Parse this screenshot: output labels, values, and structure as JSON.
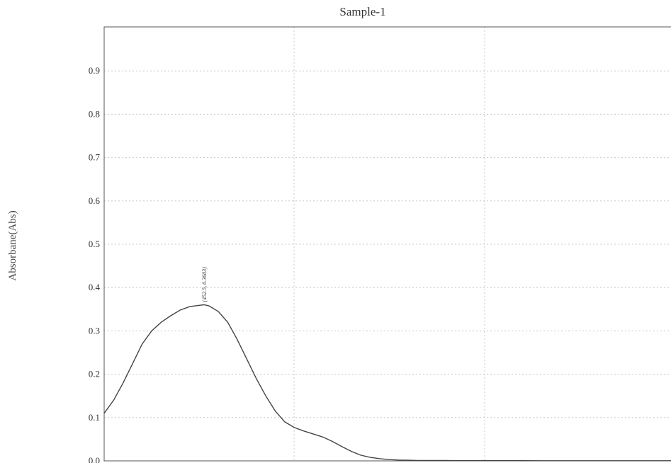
{
  "chart_data": {
    "type": "line",
    "title": "Sample-1",
    "xlabel": "",
    "ylabel": "Absorbane(Abs)",
    "ylim": [
      0.0,
      1.0
    ],
    "xlim": [
      400,
      700
    ],
    "yticks": [
      "0.0",
      "0.1",
      "0.2",
      "0.3",
      "0.4",
      "0.5",
      "0.6",
      "0.7",
      "0.8",
      "0.9"
    ],
    "grid": true,
    "series": [
      {
        "x": [
          400,
          405,
          410,
          415,
          420,
          425,
          430,
          435,
          440,
          445,
          450,
          452.5,
          455,
          460,
          465,
          470,
          475,
          480,
          485,
          490,
          495,
          500,
          505,
          510,
          515,
          520,
          525,
          530,
          535,
          540,
          545,
          550,
          555,
          560,
          565,
          570,
          575,
          580,
          585,
          590,
          600,
          610,
          620,
          630,
          640,
          650,
          660,
          670,
          680,
          690,
          700
        ],
        "y": [
          0.11,
          0.14,
          0.18,
          0.225,
          0.27,
          0.3,
          0.32,
          0.335,
          0.348,
          0.356,
          0.359,
          0.3603,
          0.358,
          0.345,
          0.32,
          0.28,
          0.235,
          0.19,
          0.15,
          0.115,
          0.09,
          0.077,
          0.069,
          0.062,
          0.055,
          0.045,
          0.033,
          0.022,
          0.013,
          0.008,
          0.005,
          0.003,
          0.002,
          0.0015,
          0.001,
          0.001,
          0.0008,
          0.0008,
          0.0007,
          0.0006,
          0.0006,
          0.0005,
          0.0005,
          0.0004,
          0.0004,
          0.0004,
          0.0004,
          0.0003,
          0.0003,
          0.0003,
          0.0003
        ]
      }
    ],
    "annotations": [
      {
        "text": "(452.5, 0.3603)",
        "x": 452.5,
        "y": 0.3603
      }
    ]
  }
}
